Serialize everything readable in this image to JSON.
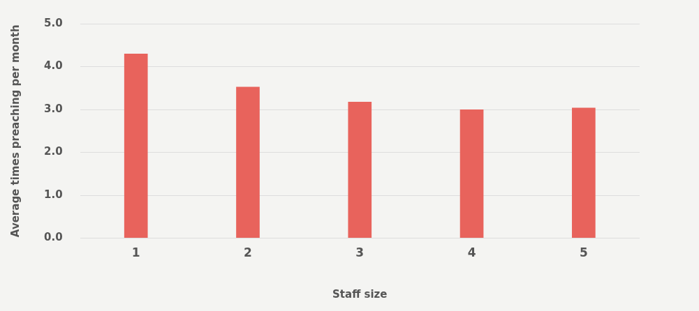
{
  "chart_data": {
    "type": "bar",
    "xlabel": "Staff size",
    "ylabel": "Average times preaching per month",
    "categories": [
      "1",
      "2",
      "3",
      "4",
      "5"
    ],
    "values": [
      4.3,
      3.53,
      3.18,
      3.0,
      3.04
    ],
    "color": "#e8635c",
    "ylim": [
      0,
      5
    ],
    "yticks": [
      {
        "value": 0,
        "label": "0.0"
      },
      {
        "value": 1,
        "label": "1.0"
      },
      {
        "value": 2,
        "label": "2.0"
      },
      {
        "value": 3,
        "label": "3.0"
      },
      {
        "value": 4,
        "label": "4.0"
      },
      {
        "value": 5,
        "label": "5.0"
      }
    ],
    "grid": "y",
    "legend": false
  }
}
